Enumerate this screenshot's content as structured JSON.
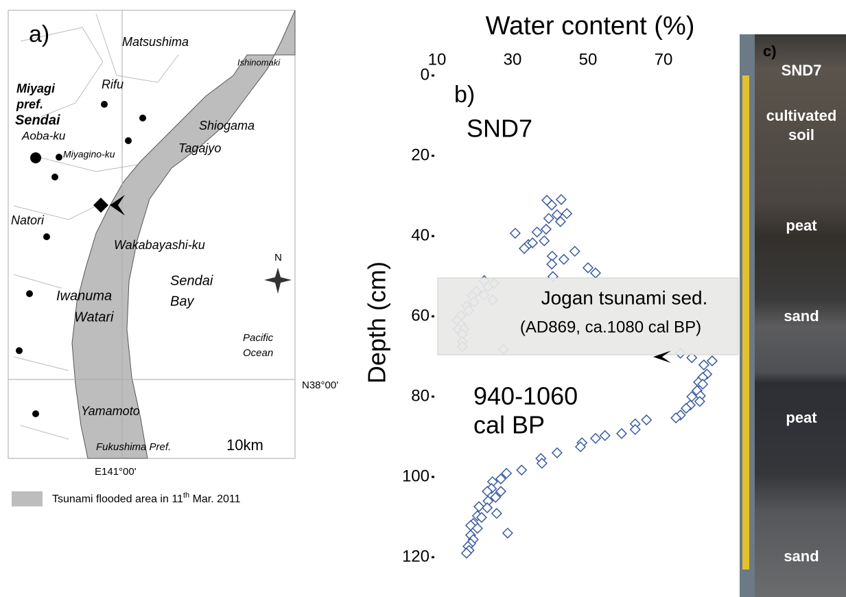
{
  "map": {
    "panel": "a)",
    "labels": [
      "Matsushima",
      "Ishinomaki",
      "Miyagi",
      "pref.",
      "Rifu",
      "Sendai",
      "Aoba-ku",
      "Miyagino-ku",
      "Shiogama",
      "Tagajyo",
      "Natori",
      "Wakabayashi-ku",
      "N",
      "Sendai",
      "Bay",
      "Iwanuma",
      "Watari",
      "Pacific",
      "Ocean",
      "N38°00'",
      "Yamamoto",
      "Fukushima Pref.",
      "10km",
      "E141°00'"
    ],
    "legend": [
      "Tsunami flooded area in 11",
      "th",
      " Mar. 2011"
    ]
  },
  "chart_data": {
    "type": "scatter",
    "title": "Water content (%)",
    "y_label": "Depth (cm)",
    "panel": "b)",
    "site": "SND7",
    "annotations": [
      "940-1060",
      "cal BP"
    ],
    "box": [
      "Jogan tsunami sed.",
      "(AD869,  ca.1080 cal BP)"
    ],
    "color": "#3a5aa0",
    "xlim": [
      10,
      90
    ],
    "xticks": [
      10,
      30,
      50,
      70
    ],
    "ylim": [
      0,
      120
    ],
    "yticks": [
      0,
      20,
      40,
      60,
      80,
      100,
      120
    ],
    "y_inverted": true,
    "x": [
      39.1,
      40.4,
      42.9,
      41.8,
      44.4,
      39.6,
      42.7,
      38.9,
      36.5,
      30.7,
      34.2,
      35.3,
      33.1,
      38.4,
      40.5,
      43.6,
      46.5,
      40.4,
      40.7,
      50.0,
      52.0,
      22.5,
      25.1,
      23.5,
      20.4,
      22.4,
      19.3,
      24.7,
      19.8,
      17.8,
      18.4,
      16.4,
      15.3,
      16.4,
      15.6,
      17.1,
      16.7,
      16.7,
      16.7,
      27.6,
      74.5,
      77.5,
      82.9,
      80.7,
      81.5,
      80.4,
      79.3,
      80.4,
      78.9,
      79.8,
      77.5,
      79.6,
      77.1,
      76.0,
      74.5,
      73.3,
      65.5,
      62.5,
      62.5,
      58.9,
      54.5,
      52.0,
      48.4,
      48.0,
      41.8,
      37.5,
      37.8,
      32.4,
      28.4,
      26.9,
      24.7,
      24.4,
      23.3,
      26.9,
      25.5,
      23.5,
      21.1,
      23.3,
      25.8,
      20.7,
      21.8,
      19.6,
      18.9,
      20.7,
      28.7,
      18.9,
      19.6,
      18.9,
      18.2,
      18.5,
      17.8
    ],
    "values": [
      31.1,
      32.3,
      30.9,
      34.7,
      34.4,
      35.6,
      36.4,
      38.3,
      39.0,
      39.3,
      42.1,
      41.7,
      43.1,
      41.2,
      45.0,
      45.8,
      43.8,
      47.0,
      50.1,
      47.9,
      49.2,
      51.1,
      51.8,
      52.6,
      53.8,
      54.7,
      54.9,
      55.9,
      56.4,
      57.4,
      58.5,
      59.8,
      61.0,
      62.1,
      63.2,
      63.2,
      64.4,
      66.3,
      67.5,
      68.2,
      69.2,
      70.3,
      71.1,
      72.1,
      74.4,
      75.2,
      76.4,
      76.9,
      78.5,
      79.8,
      80.0,
      81.2,
      82.1,
      82.9,
      84.6,
      85.3,
      85.8,
      86.8,
      88.2,
      89.2,
      89.7,
      90.4,
      91.5,
      92.5,
      94.0,
      95.4,
      96.6,
      98.3,
      99.1,
      100.5,
      101.2,
      102.9,
      103.6,
      103.6,
      105.1,
      106.0,
      107.4,
      107.7,
      109.1,
      109.7,
      110.1,
      111.6,
      112.1,
      112.8,
      114.0,
      114.5,
      115.6,
      116.6,
      117.3,
      118.3,
      119.0
    ]
  },
  "core": {
    "panel": "c)",
    "labels": [
      "SND7",
      "cultivated",
      "soil",
      "peat",
      "sand",
      "peat",
      "sand"
    ]
  }
}
